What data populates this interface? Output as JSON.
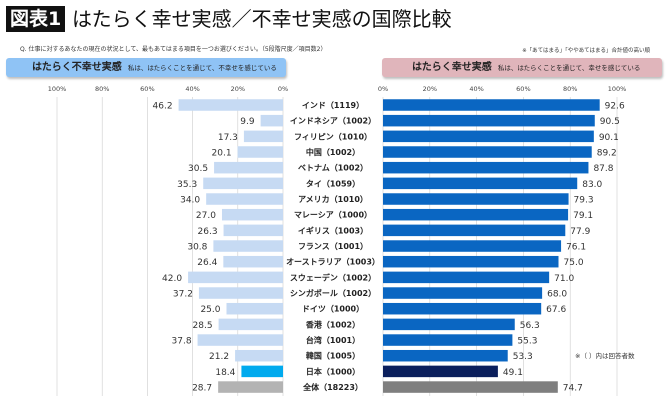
{
  "header": {
    "figure_label": "図表1",
    "title": "はたらく幸せ実感／不幸せ実感の国際比較",
    "question": "Q. 仕事に対するあなたの現在の状況として、最もあてはまる項目を一つお選びください。（5段階尺度／項目数2）",
    "note": "※「あてはまる」「ややあてはまる」合計値の高い順",
    "footnote": "※（ ）内は回答者数"
  },
  "chart_data": [
    {
      "type": "bar",
      "orientation": "horizontal-reversed",
      "title": "はたらく不幸せ実感",
      "subtitle": "私は、はたらくことを通じて、不幸せを感じている",
      "xlim": [
        100,
        0
      ],
      "xticks": [
        "100%",
        "80%",
        "60%",
        "40%",
        "20%",
        "0%"
      ],
      "grid": true,
      "colors": {
        "default": "#c6daf3",
        "japan": "#00aaee",
        "total": "#b3b3b3"
      },
      "categories": [
        "インド（1119）",
        "インドネシア（1002）",
        "フィリピン（1010）",
        "中国（1002）",
        "ベトナム（1002）",
        "タイ（1059）",
        "アメリカ（1010）",
        "マレーシア（1000）",
        "イギリス（1003）",
        "フランス（1001）",
        "オーストラリア（1003）",
        "スウェーデン（1002）",
        "シンガポール（1002）",
        "ドイツ（1000）",
        "香港（1002）",
        "台湾（1001）",
        "韓国（1005）",
        "日本（1000）",
        "全体（18223）"
      ],
      "values": [
        46.2,
        9.9,
        17.3,
        20.1,
        30.5,
        35.3,
        34.0,
        27.0,
        26.3,
        30.8,
        26.4,
        42.0,
        37.2,
        25.0,
        28.5,
        37.8,
        21.2,
        18.4,
        28.7
      ]
    },
    {
      "type": "bar",
      "orientation": "horizontal",
      "title": "はたらく幸せ実感",
      "subtitle": "私は、はたらくことを通じて、幸せを感じている",
      "xlim": [
        0,
        100
      ],
      "xticks": [
        "0%",
        "20%",
        "40%",
        "60%",
        "80%",
        "100%"
      ],
      "grid": true,
      "colors": {
        "default": "#0a66c2",
        "japan": "#0b1f5c",
        "total": "#7f7f7f"
      },
      "values": [
        92.6,
        90.5,
        90.1,
        89.2,
        87.8,
        83.0,
        79.3,
        79.1,
        77.9,
        76.1,
        75.0,
        71.0,
        68.0,
        67.6,
        56.3,
        55.3,
        53.3,
        49.1,
        74.7
      ]
    }
  ]
}
